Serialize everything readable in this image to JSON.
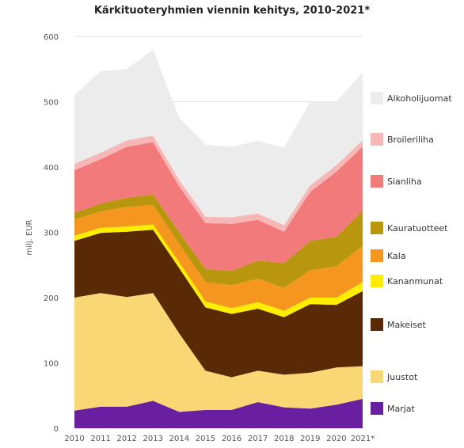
{
  "chart_data": {
    "type": "area",
    "title": "Kärkituoteryhmien viennin kehitys, 2010-2021*",
    "ylabel": "milj. EUR",
    "xlabel": "",
    "x": [
      "2010",
      "2011",
      "2012",
      "2013",
      "2014",
      "2015",
      "2016",
      "2017",
      "2018",
      "2019",
      "2020",
      "2021*"
    ],
    "ylim": [
      0,
      600
    ],
    "yticks": [
      0,
      100,
      200,
      300,
      400,
      500,
      600
    ],
    "stacked": true,
    "grid": true,
    "legend_position": "right",
    "series": [
      {
        "name": "Marjat",
        "color": "#6a1fa0",
        "values": [
          27,
          33,
          33,
          42,
          25,
          28,
          28,
          40,
          32,
          30,
          36,
          45
        ]
      },
      {
        "name": "Juustot",
        "color": "#f8d774",
        "values": [
          173,
          174,
          168,
          165,
          120,
          60,
          50,
          48,
          50,
          55,
          57,
          50
        ]
      },
      {
        "name": "Makeiset",
        "color": "#5a2a06",
        "values": [
          87,
          92,
          100,
          97,
          100,
          97,
          97,
          95,
          88,
          105,
          96,
          115
        ]
      },
      {
        "name": "Kananmunat",
        "color": "#ffee00",
        "values": [
          8,
          8,
          8,
          8,
          9,
          9,
          9,
          10,
          10,
          10,
          11,
          14
        ]
      },
      {
        "name": "Kala",
        "color": "#f5961e",
        "values": [
          25,
          25,
          30,
          30,
          28,
          30,
          35,
          36,
          35,
          42,
          48,
          55
        ]
      },
      {
        "name": "Kauratuotteet",
        "color": "#b8960e",
        "values": [
          10,
          12,
          14,
          16,
          18,
          20,
          22,
          28,
          38,
          45,
          45,
          55
        ]
      },
      {
        "name": "Sianliha",
        "color": "#f27a7a",
        "values": [
          65,
          68,
          78,
          80,
          70,
          70,
          72,
          62,
          48,
          75,
          100,
          97
        ]
      },
      {
        "name": "Broileriliha",
        "color": "#f8b7b7",
        "values": [
          10,
          10,
          10,
          10,
          10,
          10,
          10,
          10,
          10,
          10,
          10,
          10
        ]
      },
      {
        "name": "Alkoholijuomat",
        "color": "#ececec",
        "values": [
          105,
          125,
          109,
          132,
          95,
          110,
          108,
          111,
          119,
          128,
          97,
          104
        ]
      }
    ]
  }
}
